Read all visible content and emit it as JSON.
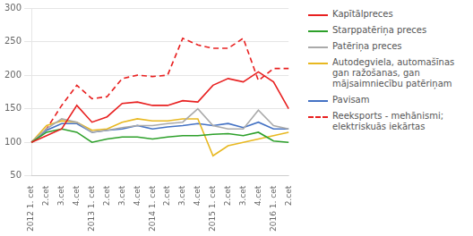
{
  "chart_data": {
    "type": "line",
    "categories": [
      "2012 1. cet",
      "2.cet",
      "3.cet",
      "4.cet",
      "2013 1. cet",
      "2.cet",
      "3.cet",
      "4.cet",
      "2014 1. cet",
      "2.cet",
      "3.cet",
      "4.cet",
      "2015 1. cet",
      "2.cet",
      "3.cet",
      "4.cet",
      "2016 1. cet",
      "2.cet"
    ],
    "series": [
      {
        "name": "Kapītālpreces",
        "color": "#e82020",
        "line_style": "solid",
        "values": [
          100,
          110,
          120,
          155,
          130,
          138,
          158,
          160,
          155,
          155,
          162,
          160,
          185,
          195,
          190,
          205,
          190,
          150
        ]
      },
      {
        "name": "Starppatēriņa preces",
        "color": "#2da02a",
        "line_style": "solid",
        "values": [
          100,
          115,
          120,
          115,
          100,
          105,
          108,
          108,
          105,
          108,
          110,
          110,
          112,
          113,
          110,
          115,
          102,
          100
        ]
      },
      {
        "name": "Patēriņa preces",
        "color": "#aaaaaa",
        "line_style": "solid",
        "values": [
          100,
          120,
          135,
          130,
          115,
          118,
          122,
          125,
          125,
          128,
          130,
          150,
          125,
          120,
          120,
          148,
          125,
          120
        ]
      },
      {
        "name": "Autodegviela, automašīnas\ngan ražošanas, gan\nmājsaimniecību patēriņam",
        "color": "#e8b820",
        "line_style": "solid",
        "values": [
          100,
          125,
          132,
          130,
          118,
          120,
          130,
          135,
          132,
          132,
          135,
          135,
          80,
          95,
          100,
          105,
          110,
          115
        ]
      },
      {
        "name": "Pavisam",
        "color": "#4472c4",
        "line_style": "solid",
        "values": [
          100,
          118,
          128,
          128,
          115,
          118,
          120,
          125,
          120,
          123,
          125,
          128,
          125,
          128,
          122,
          130,
          120,
          120
        ]
      },
      {
        "name": "Reeksports - mehānismi;\nelektriskuās iekārtas",
        "color": "#e82020",
        "line_style": "dashed",
        "values": [
          100,
          120,
          155,
          185,
          165,
          168,
          195,
          200,
          198,
          200,
          255,
          245,
          240,
          240,
          255,
          192,
          210,
          210
        ]
      }
    ],
    "ylim": [
      50,
      300
    ],
    "yticks": [
      50,
      100,
      150,
      200,
      250,
      300
    ],
    "grid": true,
    "legend": "right"
  }
}
